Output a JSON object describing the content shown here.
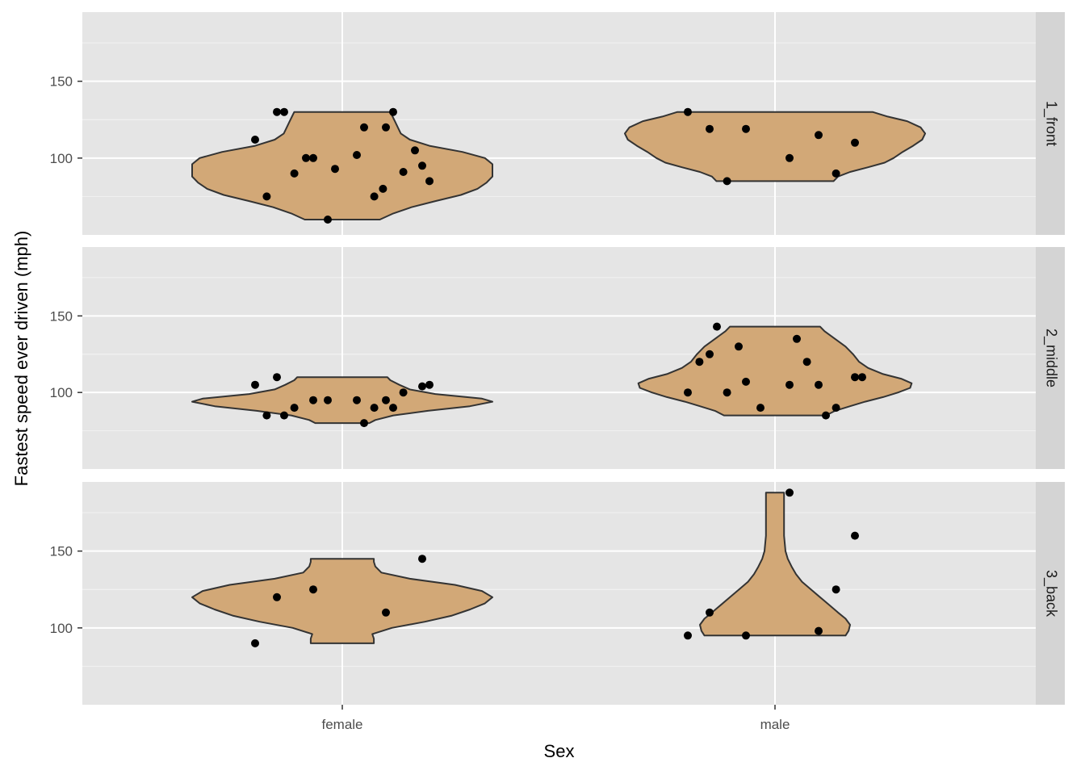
{
  "chart_data": {
    "type": "violin",
    "xlabel": "Sex",
    "ylabel": "Fastest speed ever driven (mph)",
    "categories": [
      "female",
      "male"
    ],
    "y_ticks": [
      100,
      150
    ],
    "ylim": [
      50,
      195
    ],
    "grid": true,
    "colors": {
      "violin_fill": "#D2A877",
      "violin_stroke": "#333333",
      "panel_bg": "#E5E5E5",
      "strip_bg": "#D4D4D4",
      "point": "#000000"
    },
    "facets": [
      {
        "label": "1_front",
        "violins": [
          {
            "category": "female",
            "min": 60,
            "max": 130,
            "density": [
              [
                60,
                0.25
              ],
              [
                64,
                0.34
              ],
              [
                68,
                0.46
              ],
              [
                72,
                0.62
              ],
              [
                76,
                0.79
              ],
              [
                80,
                0.9
              ],
              [
                84,
                0.96
              ],
              [
                88,
                1.0
              ],
              [
                92,
                1.0
              ],
              [
                96,
                1.0
              ],
              [
                100,
                0.95
              ],
              [
                104,
                0.8
              ],
              [
                108,
                0.58
              ],
              [
                112,
                0.45
              ],
              [
                116,
                0.39
              ],
              [
                120,
                0.37
              ],
              [
                124,
                0.35
              ],
              [
                128,
                0.33
              ],
              [
                130,
                0.32
              ]
            ]
          },
          {
            "category": "male",
            "min": 85,
            "max": 130,
            "density": [
              [
                85,
                0.39
              ],
              [
                88,
                0.42
              ],
              [
                91,
                0.5
              ],
              [
                94,
                0.62
              ],
              [
                97,
                0.73
              ],
              [
                100,
                0.79
              ],
              [
                104,
                0.85
              ],
              [
                108,
                0.92
              ],
              [
                112,
                0.98
              ],
              [
                116,
                1.0
              ],
              [
                120,
                0.97
              ],
              [
                124,
                0.88
              ],
              [
                127,
                0.75
              ],
              [
                130,
                0.65
              ]
            ]
          }
        ],
        "points": [
          {
            "category": "female",
            "y": [
              130,
              120,
              100,
              95,
              112,
              102,
              91,
              90,
              75,
              75,
              85,
              60,
              130,
              130,
              120,
              100,
              105,
              93,
              80
            ]
          },
          {
            "category": "male",
            "y": [
              119,
              115,
              119,
              110,
              130,
              100,
              90,
              85
            ]
          }
        ]
      },
      {
        "label": "2_middle",
        "violins": [
          {
            "category": "female",
            "min": 80,
            "max": 110,
            "density": [
              [
                80,
                0.18
              ],
              [
                82,
                0.22
              ],
              [
                85,
                0.34
              ],
              [
                88,
                0.57
              ],
              [
                91,
                0.85
              ],
              [
                94,
                1.0
              ],
              [
                96,
                0.93
              ],
              [
                99,
                0.62
              ],
              [
                102,
                0.45
              ],
              [
                105,
                0.38
              ],
              [
                108,
                0.32
              ],
              [
                110,
                0.3
              ]
            ]
          },
          {
            "category": "male",
            "min": 85,
            "max": 143,
            "density": [
              [
                85,
                0.34
              ],
              [
                88,
                0.4
              ],
              [
                91,
                0.5
              ],
              [
                94,
                0.6
              ],
              [
                97,
                0.72
              ],
              [
                100,
                0.82
              ],
              [
                103,
                0.9
              ],
              [
                106,
                0.91
              ],
              [
                109,
                0.84
              ],
              [
                112,
                0.72
              ],
              [
                116,
                0.62
              ],
              [
                120,
                0.56
              ],
              [
                125,
                0.52
              ],
              [
                130,
                0.47
              ],
              [
                135,
                0.4
              ],
              [
                140,
                0.33
              ],
              [
                143,
                0.3
              ]
            ]
          }
        ],
        "points": [
          {
            "category": "female",
            "y": [
              110,
              95,
              95,
              104,
              105,
              95,
              100,
              90,
              90,
              85,
              105,
              95,
              90,
              85,
              80
            ]
          },
          {
            "category": "male",
            "y": [
              125,
              105,
              107,
              110,
              100,
              105,
              90,
              100,
              120,
              120,
              110,
              90,
              85,
              143,
              135,
              130
            ]
          }
        ]
      },
      {
        "label": "3_back",
        "violins": [
          {
            "category": "female",
            "min": 90,
            "max": 145,
            "density": [
              [
                90,
                0.21
              ],
              [
                93,
                0.21
              ],
              [
                96,
                0.2
              ],
              [
                100,
                0.33
              ],
              [
                104,
                0.55
              ],
              [
                108,
                0.73
              ],
              [
                112,
                0.85
              ],
              [
                116,
                0.95
              ],
              [
                120,
                1.0
              ],
              [
                124,
                0.93
              ],
              [
                128,
                0.75
              ],
              [
                132,
                0.45
              ],
              [
                136,
                0.26
              ],
              [
                140,
                0.22
              ],
              [
                143,
                0.21
              ],
              [
                145,
                0.21
              ]
            ]
          },
          {
            "category": "male",
            "min": 95,
            "max": 188,
            "density": [
              [
                95,
                0.47
              ],
              [
                98,
                0.49
              ],
              [
                102,
                0.5
              ],
              [
                106,
                0.47
              ],
              [
                110,
                0.42
              ],
              [
                115,
                0.36
              ],
              [
                120,
                0.3
              ],
              [
                125,
                0.24
              ],
              [
                130,
                0.18
              ],
              [
                135,
                0.14
              ],
              [
                140,
                0.11
              ],
              [
                145,
                0.085
              ],
              [
                150,
                0.07
              ],
              [
                160,
                0.06
              ],
              [
                170,
                0.06
              ],
              [
                180,
                0.06
              ],
              [
                188,
                0.06
              ]
            ]
          }
        ],
        "points": [
          {
            "category": "female",
            "y": [
              120,
              110,
              125,
              145,
              90
            ]
          },
          {
            "category": "male",
            "y": [
              110,
              98,
              95,
              160,
              95,
              188,
              125
            ]
          }
        ]
      }
    ]
  }
}
